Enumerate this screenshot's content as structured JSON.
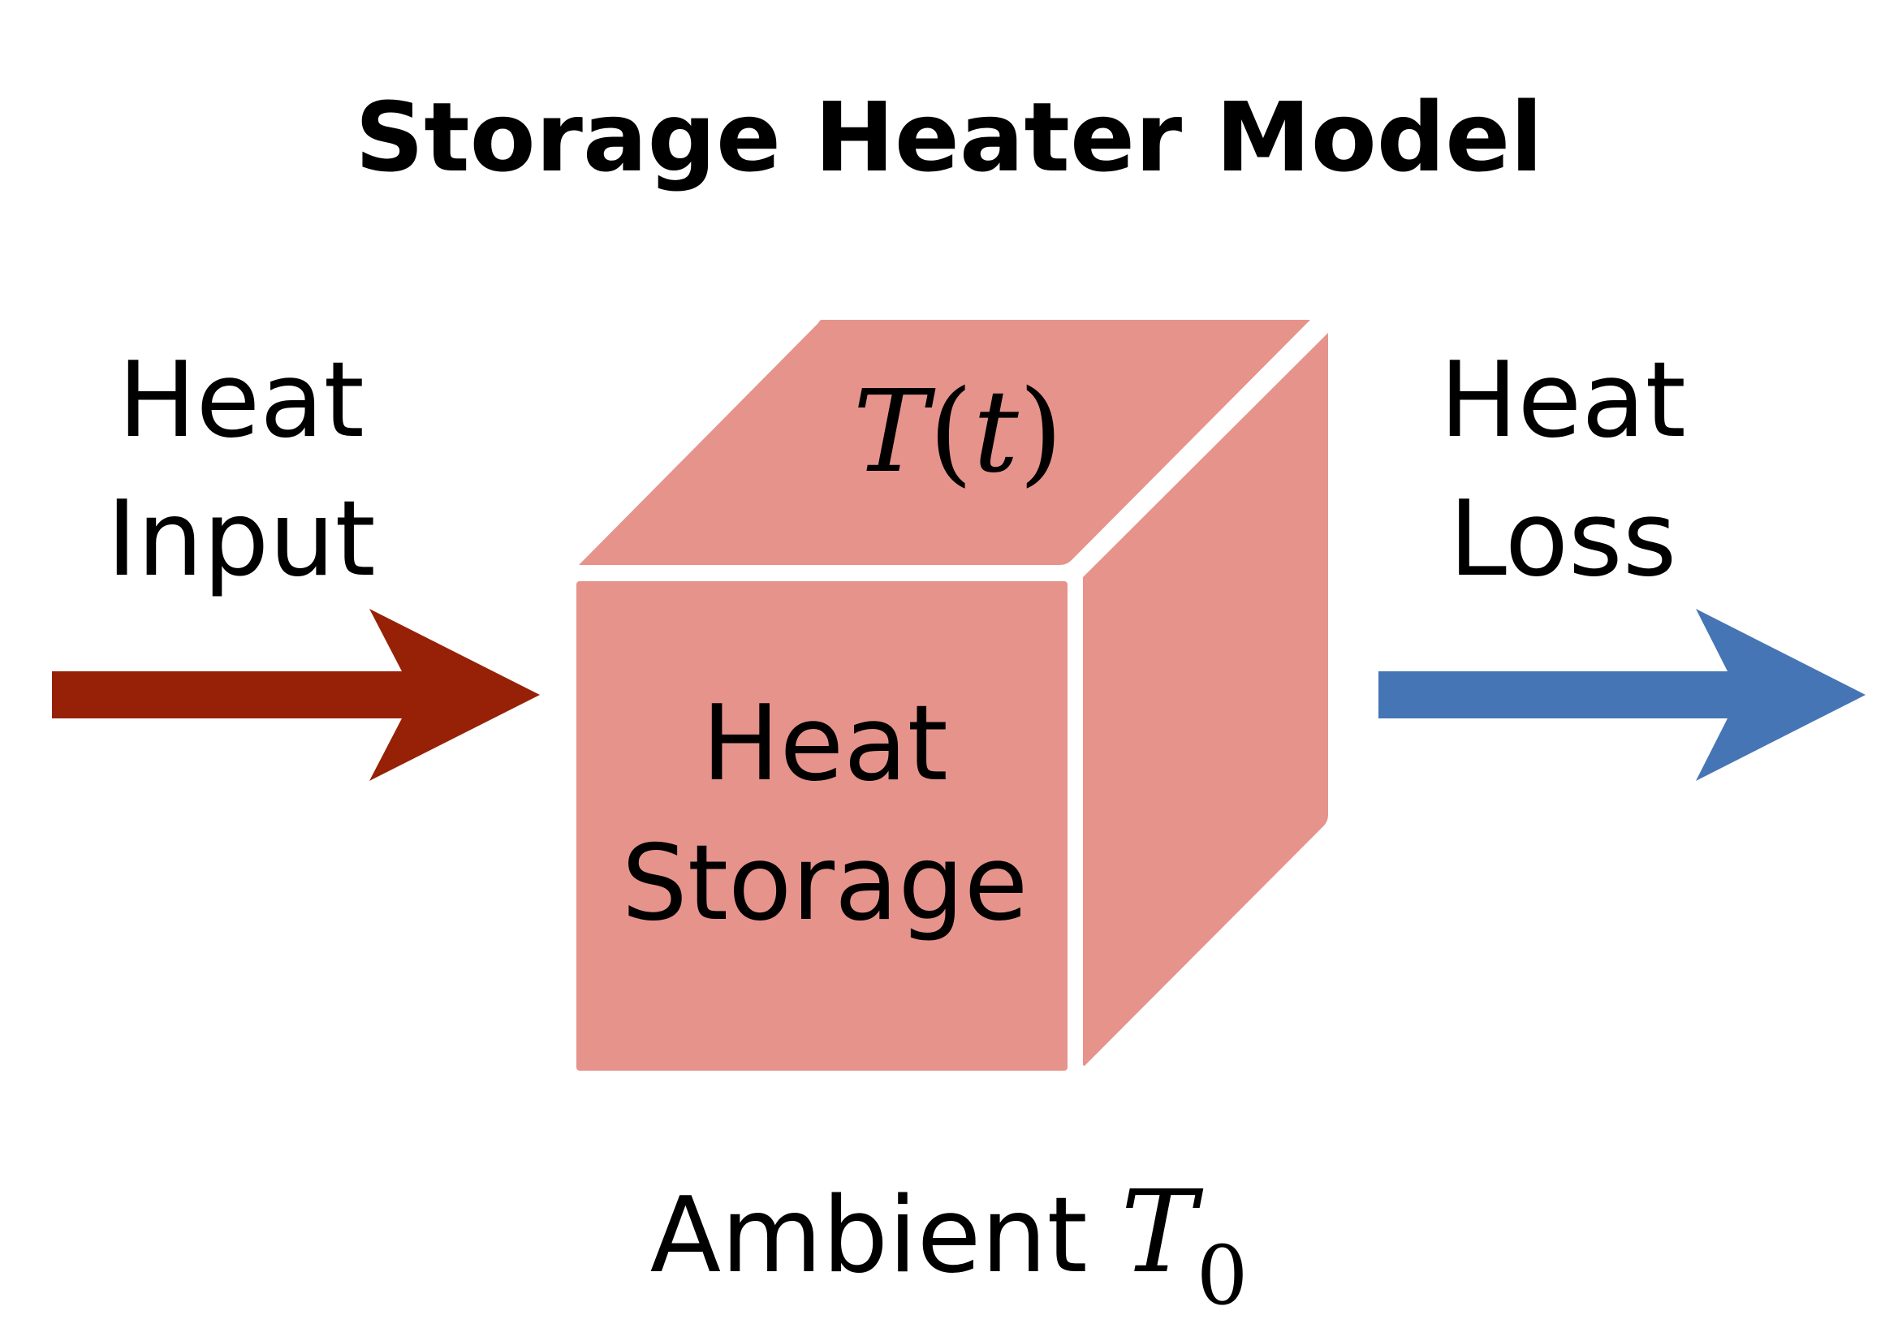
{
  "title": "Storage Heater Model",
  "input_label": {
    "line1": "Heat",
    "line2": "Input"
  },
  "loss_label": {
    "line1": "Heat",
    "line2": "Loss"
  },
  "box": {
    "top_symbol": "T",
    "top_paren_open": "(",
    "top_var": "t",
    "top_paren_close": ")",
    "front_line1": "Heat",
    "front_line2": "Storage"
  },
  "ambient": {
    "label": "Ambient",
    "symbol": "T",
    "subscript": "0"
  },
  "colors": {
    "box_fill": "#e6938b",
    "input_arrow": "#962106",
    "loss_arrow": "#4575b4",
    "text": "#000000",
    "background": "#ffffff"
  }
}
